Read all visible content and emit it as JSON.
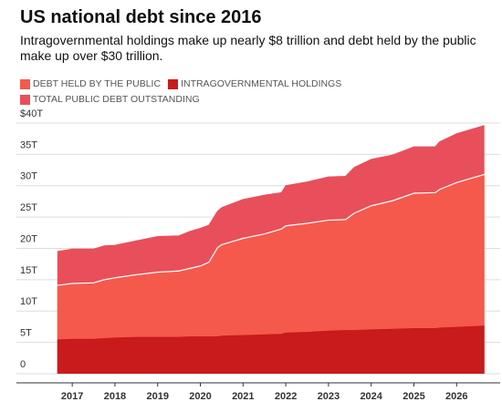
{
  "chart_data": {
    "type": "area",
    "title": "US national debt since 2016",
    "subtitle": "Intragovernmental holdings make up nearly $8 trillion and debt held by the public make up over $30 trillion.",
    "x": [
      2016.65,
      2017,
      2017.5,
      2017.75,
      2018,
      2018.5,
      2019,
      2019.5,
      2019.75,
      2020,
      2020.2,
      2020.4,
      2020.5,
      2021,
      2021.5,
      2021.9,
      2022,
      2022.5,
      2023,
      2023.4,
      2023.6,
      2024,
      2024.5,
      2025,
      2025.5,
      2025.6,
      2026,
      2026.65
    ],
    "series": [
      {
        "name": "DEBT HELD BY THE PUBLIC",
        "color": "#f5594c",
        "values": [
          14.1,
          14.4,
          14.5,
          15.0,
          15.3,
          15.8,
          16.2,
          16.4,
          16.8,
          17.2,
          17.8,
          20.1,
          20.6,
          21.6,
          22.3,
          23.1,
          23.6,
          24.0,
          24.5,
          24.6,
          25.6,
          26.8,
          27.6,
          28.8,
          28.9,
          29.4,
          30.5,
          31.8
        ]
      },
      {
        "name": "INTRAGOVERNMENTAL HOLDINGS",
        "color": "#c91b1b",
        "values": [
          5.4,
          5.5,
          5.5,
          5.6,
          5.7,
          5.8,
          5.8,
          5.8,
          5.9,
          5.9,
          5.9,
          5.9,
          6.0,
          6.1,
          6.2,
          6.3,
          6.5,
          6.6,
          6.8,
          6.9,
          6.9,
          7.0,
          7.1,
          7.2,
          7.2,
          7.3,
          7.4,
          7.6
        ]
      },
      {
        "name": "TOTAL PUBLIC DEBT OUTSTANDING",
        "color": "#e84f5a",
        "values": [
          19.5,
          19.9,
          19.9,
          20.4,
          20.5,
          21.2,
          21.9,
          22.0,
          22.7,
          23.2,
          23.7,
          25.9,
          26.5,
          27.8,
          28.5,
          28.9,
          30.0,
          30.6,
          31.4,
          31.5,
          32.9,
          34.2,
          34.9,
          36.2,
          36.2,
          37.0,
          38.3,
          39.6
        ]
      }
    ],
    "xlim": [
      2016.27,
      2027.02
    ],
    "xticks": [
      2017,
      2018,
      2019,
      2020,
      2021,
      2022,
      2023,
      2024,
      2025,
      2026
    ],
    "ylim": [
      0,
      40
    ],
    "yticks": [
      0,
      {
        "value": 5,
        "label": "5T"
      },
      {
        "value": 10,
        "label": "10T"
      },
      {
        "value": 15,
        "label": "15T"
      },
      {
        "value": 20,
        "label": "20T"
      },
      {
        "value": 25,
        "label": "25T"
      },
      {
        "value": 30,
        "label": "30T"
      },
      {
        "value": 35,
        "label": "35T"
      },
      {
        "value": 40,
        "label": "$40T"
      }
    ],
    "grid": true
  }
}
